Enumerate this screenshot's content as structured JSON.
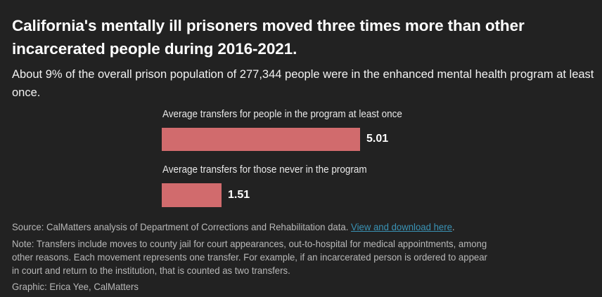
{
  "title": "California's mentally ill prisoners moved three times more than other incarcerated people during 2016-2021.",
  "subtitle": "About 9% of the overall prison population of 277,344 people were in the enhanced mental health program at least once.",
  "colors": {
    "bar": "#d16b6d",
    "background": "#222222",
    "link": "#3a93b5"
  },
  "chart_data": {
    "type": "bar",
    "orientation": "horizontal",
    "categories": [
      "Average transfers for people in the program at least once",
      "Average transfers for those never in the program"
    ],
    "values": [
      5.01,
      1.51
    ],
    "value_labels": [
      "5.01",
      "1.51"
    ],
    "xlim": [
      0,
      5.01
    ]
  },
  "footer": {
    "source": "Source: CalMatters analysis of Department of Corrections and Rehabilitation data.",
    "link": "View and download here",
    "period": ".",
    "note_lines": [
      "Note: Transfers include moves to county jail for court appearances, out-to-hospital for medical appointments, among",
      "other reasons. Each movement represents one transfer. For example, if an incarcerated person is ordered to appear",
      "in court and return to the institution, that is counted as two transfers."
    ],
    "credit": "Graphic: Erica Yee, CalMatters"
  }
}
